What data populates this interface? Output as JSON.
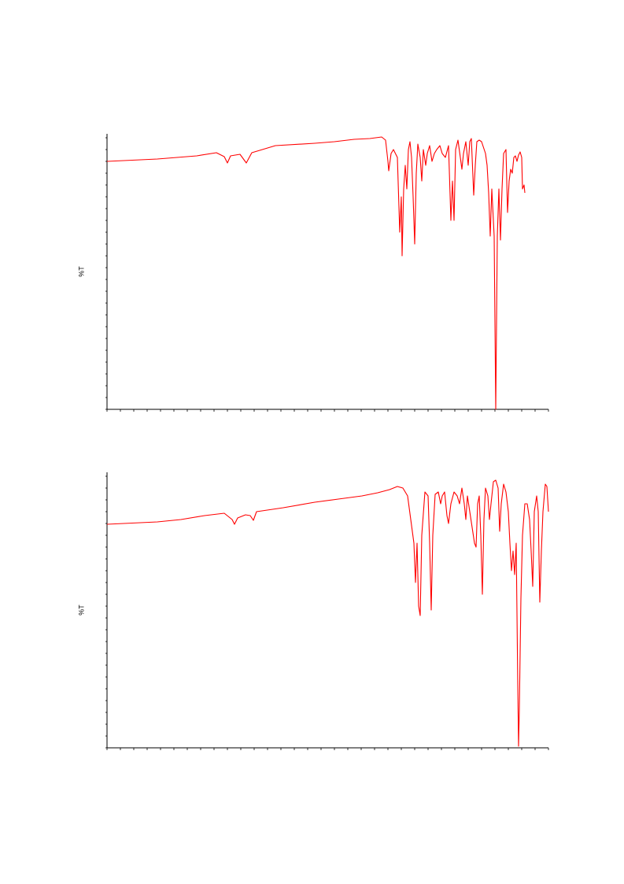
{
  "chart_data": [
    {
      "type": "line",
      "y_label": "%T",
      "color": "#ff0000",
      "xlim": [
        0,
        561
      ],
      "ylim": [
        0,
        350
      ],
      "xticks": [
        0,
        17,
        34,
        51,
        68,
        85,
        102,
        119,
        136,
        153,
        170,
        187,
        204,
        221,
        238,
        255,
        272,
        289,
        306,
        323,
        340,
        357,
        374,
        391,
        408,
        425,
        442,
        459,
        476,
        493,
        510,
        527,
        544,
        561
      ],
      "yticks": [
        0,
        15,
        30,
        45,
        60,
        75,
        90,
        105,
        120,
        135,
        150,
        165,
        180,
        195,
        210,
        225,
        240,
        255,
        270,
        285,
        300,
        315,
        330,
        345
      ],
      "x": [
        0,
        64,
        114,
        139,
        149,
        153,
        157,
        169,
        177,
        184,
        214,
        264,
        289,
        314,
        334,
        349,
        354,
        357,
        358,
        361,
        364,
        369,
        372,
        374,
        375,
        377,
        379,
        381,
        383,
        385,
        387,
        389,
        391,
        393,
        395,
        398,
        400,
        402,
        405,
        407,
        410,
        413,
        416,
        419,
        423,
        426,
        430,
        434,
        437,
        439,
        441,
        443,
        446,
        449,
        451,
        453,
        456,
        459,
        461,
        463,
        466,
        468,
        470,
        473,
        476,
        481,
        483,
        485,
        487,
        489,
        492,
        494,
        496,
        498,
        500,
        502,
        504,
        507,
        509,
        511,
        513,
        515,
        517,
        519,
        521,
        523,
        525,
        527,
        528,
        530,
        531
      ],
      "values": [
        315,
        318,
        322,
        326,
        321,
        313,
        322,
        324,
        313,
        326,
        335,
        338,
        340,
        343,
        344,
        346,
        342,
        315,
        303,
        325,
        330,
        320,
        225,
        270,
        195,
        280,
        310,
        280,
        330,
        340,
        320,
        270,
        210,
        300,
        337,
        320,
        290,
        330,
        310,
        325,
        335,
        315,
        325,
        330,
        335,
        325,
        320,
        335,
        240,
        290,
        240,
        330,
        342,
        320,
        305,
        325,
        340,
        310,
        340,
        344,
        272,
        310,
        340,
        342,
        340,
        325,
        310,
        275,
        220,
        280,
        220,
        0,
        220,
        280,
        215,
        280,
        325,
        330,
        250,
        290,
        305,
        300,
        320,
        322,
        315,
        323,
        327,
        320,
        280,
        285,
        275
      ]
    },
    {
      "type": "line",
      "y_label": "%T",
      "color": "#ff0000",
      "xlim": [
        0,
        561
      ],
      "ylim": [
        0,
        350
      ],
      "xticks": [
        0,
        17,
        34,
        51,
        68,
        85,
        102,
        119,
        136,
        153,
        170,
        187,
        204,
        221,
        238,
        255,
        272,
        289,
        306,
        323,
        340,
        357,
        374,
        391,
        408,
        425,
        442,
        459,
        476,
        493,
        510,
        527,
        544,
        561
      ],
      "yticks": [
        0,
        15,
        30,
        45,
        60,
        75,
        90,
        105,
        120,
        135,
        150,
        165,
        180,
        195,
        210,
        225,
        240,
        255,
        270,
        285,
        300,
        315,
        330,
        345
      ],
      "x": [
        0,
        64,
        94,
        124,
        149,
        159,
        162,
        166,
        176,
        182,
        186,
        190,
        224,
        264,
        294,
        324,
        344,
        359,
        369,
        376,
        382,
        386,
        390,
        392,
        394,
        396,
        398,
        400,
        404,
        408,
        410,
        412,
        414,
        417,
        421,
        424,
        426,
        429,
        432,
        434,
        437,
        441,
        445,
        448,
        451,
        454,
        456,
        458,
        461,
        464,
        467,
        469,
        471,
        473,
        475,
        477,
        479,
        481,
        484,
        486,
        488,
        491,
        494,
        497,
        499,
        501,
        504,
        507,
        510,
        512,
        514,
        516,
        518,
        520,
        522,
        523,
        524,
        526,
        528,
        531,
        534,
        537,
        539,
        541,
        543,
        546,
        548,
        550,
        552,
        554,
        557,
        559,
        561
      ],
      "values": [
        284,
        287,
        290,
        295,
        298,
        290,
        284,
        292,
        296,
        295,
        289,
        300,
        305,
        312,
        316,
        320,
        324,
        328,
        332,
        330,
        320,
        290,
        260,
        210,
        260,
        180,
        168,
        270,
        325,
        320,
        260,
        175,
        270,
        322,
        325,
        310,
        320,
        325,
        295,
        285,
        310,
        325,
        320,
        310,
        330,
        310,
        290,
        320,
        300,
        280,
        260,
        255,
        310,
        320,
        270,
        195,
        290,
        330,
        320,
        290,
        310,
        338,
        340,
        330,
        275,
        310,
        335,
        325,
        300,
        260,
        225,
        250,
        220,
        260,
        80,
        2,
        50,
        190,
        270,
        310,
        310,
        290,
        250,
        205,
        300,
        320,
        300,
        185,
        250,
        300,
        335,
        332,
        300
      ]
    }
  ]
}
